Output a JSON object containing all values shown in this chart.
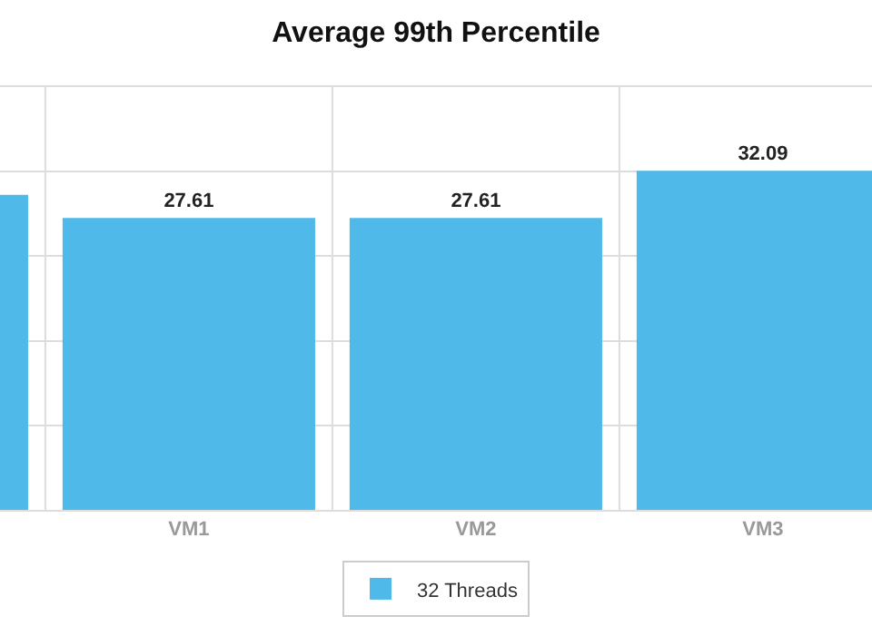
{
  "chart_data": {
    "type": "bar",
    "title": "Average 99th Percentile",
    "categories": [
      null,
      "VM1",
      "VM2",
      "VM3"
    ],
    "series": [
      {
        "name": "32 Threads",
        "color": "#4fb9ea",
        "values": [
          29.8,
          27.61,
          27.61,
          32.09
        ],
        "value_labels": [
          null,
          "27.61",
          "27.61",
          "32.09"
        ]
      }
    ],
    "ylim": [
      0,
      40
    ],
    "yticks": [
      {
        "value": 8,
        "label": null
      },
      {
        "value": 16,
        "label": null
      },
      {
        "value": 24,
        "label": null
      },
      {
        "value": 32,
        "label": null
      }
    ],
    "tick_labels": "x",
    "grid": true,
    "legend": "bottom"
  }
}
